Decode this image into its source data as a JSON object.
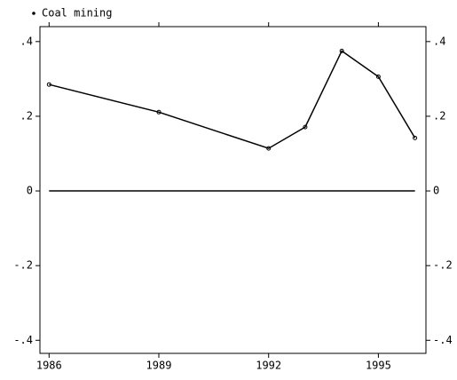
{
  "chart_data": {
    "type": "line",
    "x": [
      1986,
      1989,
      1992,
      1993,
      1994,
      1995,
      1996
    ],
    "series": [
      {
        "name": "Coal mining",
        "color": "#000000",
        "values": [
          0.285,
          0.211,
          0.114,
          0.171,
          0.375,
          0.306,
          0.142
        ]
      }
    ],
    "xlim": [
      1985.75,
      1996.3
    ],
    "xticks": [
      1986,
      1989,
      1992,
      1995
    ],
    "ylim": [
      -0.435,
      0.44
    ],
    "yticks": [
      {
        "value": -0.4,
        "label": "-.4"
      },
      {
        "value": -0.2,
        "label": "-.2"
      },
      0,
      {
        "value": 0.2,
        "label": ".2"
      },
      {
        "value": 0.4,
        "label": ".4"
      }
    ],
    "yline": 0,
    "legend": "top-left"
  }
}
